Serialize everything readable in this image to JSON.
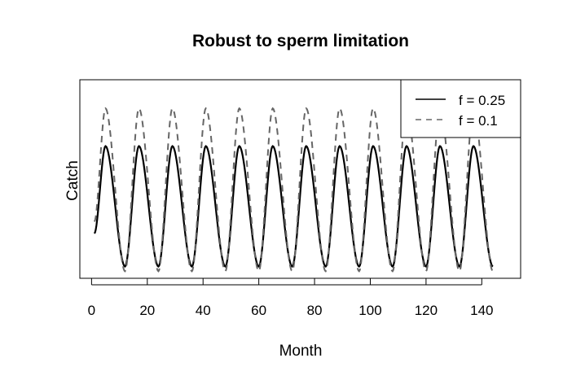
{
  "chart_data": {
    "type": "line",
    "title": "Robust to sperm limitation",
    "xlabel": "Month",
    "ylabel": "Catch",
    "xlim": [
      1,
      144
    ],
    "x_ticks": [
      0,
      20,
      40,
      60,
      80,
      100,
      120,
      140
    ],
    "y_ticks_shown": false,
    "grid": false,
    "legend_position": "top-right",
    "series": [
      {
        "name": "f = 0.25",
        "style": "solid",
        "color": "#000000",
        "period_months": 12,
        "first_peak_month": 5,
        "first_trough_month": 12,
        "relative_peak": 0.56,
        "relative_trough": 0.05,
        "start_value": 0.19
      },
      {
        "name": "f = 0.1",
        "style": "dashed",
        "color": "#666666",
        "period_months": 12,
        "first_peak_month": 5,
        "first_trough_month": 12,
        "relative_peak": 0.72,
        "relative_trough": 0.03,
        "start_value": 0.24
      }
    ]
  }
}
